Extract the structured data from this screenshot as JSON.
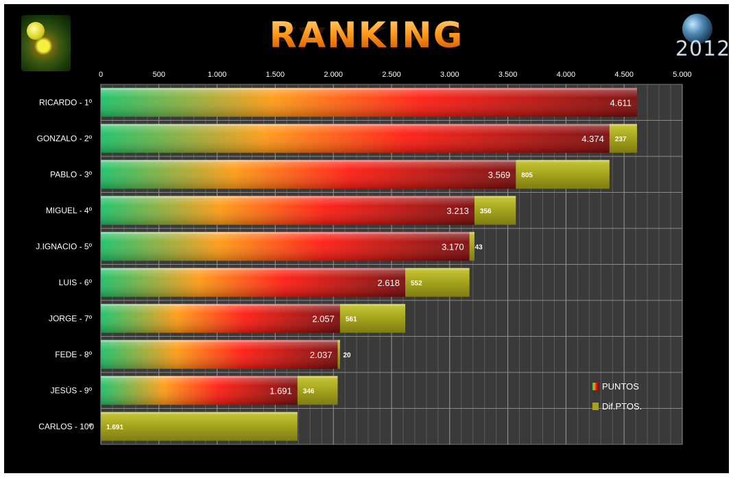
{
  "header": {
    "year": "2012"
  },
  "chart_data": {
    "type": "bar",
    "orientation": "horizontal",
    "stacked": true,
    "title": "RANKING",
    "xlim": [
      0,
      5000
    ],
    "xticks": [
      0,
      500,
      1000,
      1500,
      2000,
      2500,
      3000,
      3500,
      4000,
      4500,
      5000
    ],
    "xtick_labels": [
      "0",
      "500",
      "1.000",
      "1.500",
      "2.000",
      "2.500",
      "3.000",
      "3.500",
      "4.000",
      "4.500",
      "5.000"
    ],
    "grid": true,
    "legend_position": "bottom-right",
    "categories": [
      "RICARDO - 1º",
      "GONZALO - 2º",
      "PABLO - 3º",
      "MIGUEL - 4º",
      "J.IGNACIO - 5º",
      "LUIS - 6º",
      "JORGE - 7º",
      "FEDE - 8º",
      "JESÚS - 9º",
      "CARLOS - 10º"
    ],
    "series": [
      {
        "name": "PUNTOS",
        "values": [
          4611,
          4374,
          3569,
          3213,
          3170,
          2618,
          2057,
          2037,
          1691,
          0
        ],
        "labels": [
          "4.611",
          "4.374",
          "3.569",
          "3.213",
          "3.170",
          "2.618",
          "2.057",
          "2.037",
          "1.691",
          "0"
        ],
        "color_start": "#19c267",
        "color_mid": "#ff9a12",
        "color_red": "#ff1a10",
        "color_end": "#7a0a0a"
      },
      {
        "name": "Dif.PTOS.",
        "values": [
          0,
          237,
          805,
          356,
          43,
          552,
          561,
          20,
          346,
          1691
        ],
        "labels": [
          "",
          "237",
          "805",
          "356",
          "43",
          "552",
          "561",
          "20",
          "346",
          "1.691"
        ],
        "color": "#a5a31c"
      }
    ]
  }
}
